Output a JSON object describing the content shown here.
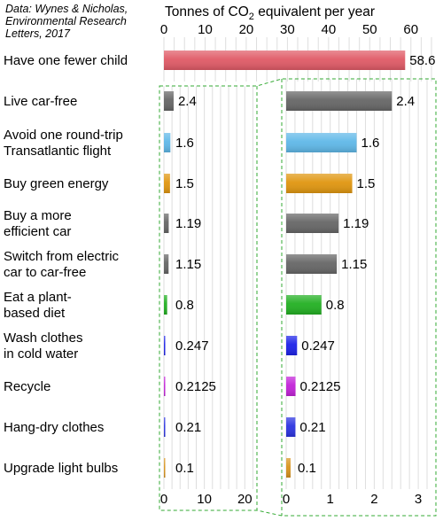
{
  "source": [
    "Data: Wynes & Nicholas,",
    "Environmental Research",
    "Letters, 2017"
  ],
  "chart_data": {
    "type": "bar",
    "title": "Tonnes of CO2 equivalent per year",
    "title_parts": {
      "before": "Tonnes of CO",
      "sub": "2",
      "after": " equivalent per year"
    },
    "categories": [
      "Have one fewer child",
      "Live car-free",
      "Avoid one round-trip Transatlantic flight",
      "Buy green energy",
      "Buy a more efficient car",
      "Switch from electric car to car-free",
      "Eat a plant-based diet",
      "Wash clothes in cold water",
      "Recycle",
      "Hang-dry clothes",
      "Upgrade light bulbs"
    ],
    "category_lines": [
      [
        "Have one fewer child"
      ],
      [
        "Live car-free"
      ],
      [
        "Avoid one round-trip",
        " Transatlantic flight"
      ],
      [
        "Buy green energy"
      ],
      [
        "Buy a more",
        " efficient car"
      ],
      [
        "Switch from electric",
        " car to car-free"
      ],
      [
        "Eat a plant-",
        " based diet"
      ],
      [
        "Wash clothes",
        " in cold water"
      ],
      [
        "Recycle"
      ],
      [
        "Hang-dry clothes"
      ],
      [
        "Upgrade light bulbs"
      ]
    ],
    "values": [
      58.6,
      2.4,
      1.6,
      1.5,
      1.19,
      1.15,
      0.8,
      0.247,
      0.2125,
      0.21,
      0.1
    ],
    "value_labels": [
      "58.6",
      "2.4",
      "1.6",
      "1.5",
      "1.19",
      "1.15",
      "0.8",
      "0.247",
      "0.2125",
      "0.21",
      "0.1"
    ],
    "colors": [
      "#e05a66",
      "#666666",
      "#5fb8e8",
      "#e0960f",
      "#666666",
      "#666666",
      "#22b022",
      "#1c22e8",
      "#c222d8",
      "#2b33e0",
      "#d8931c"
    ],
    "panels": [
      {
        "name": "main",
        "xlim": [
          0,
          65
        ],
        "ticks": [
          0,
          10,
          20,
          30,
          40,
          50,
          60
        ],
        "tick_position": "top"
      },
      {
        "name": "zoom-left",
        "xlim": [
          0,
          23
        ],
        "ticks": [
          0,
          10,
          20
        ],
        "tick_position": "bottom"
      },
      {
        "name": "zoom-right",
        "xlim": [
          0,
          3.3
        ],
        "ticks": [
          0,
          1,
          2,
          3
        ],
        "tick_position": "bottom"
      }
    ],
    "grid": true,
    "legend": "none"
  }
}
